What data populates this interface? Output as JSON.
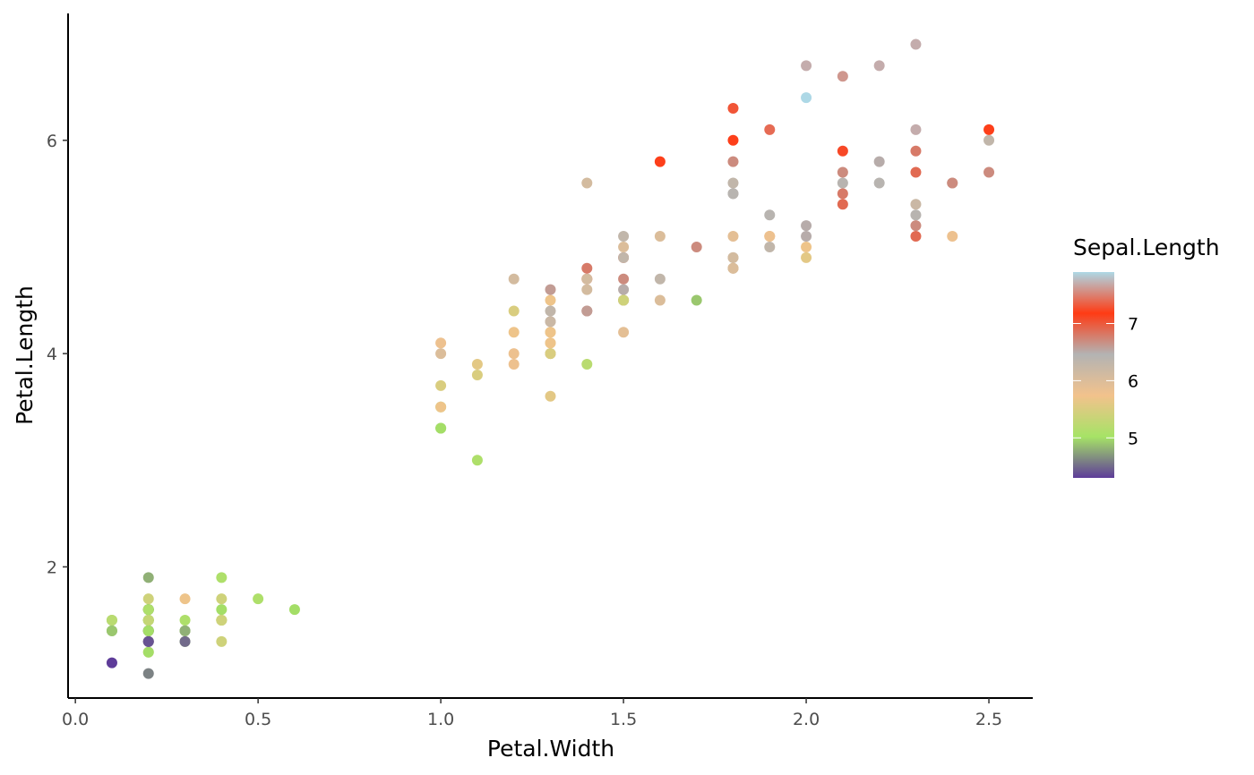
{
  "chart_data": {
    "type": "scatter",
    "xlabel": "Petal.Width",
    "ylabel": "Petal.Length",
    "xlim": [
      -0.02,
      2.62
    ],
    "ylim": [
      0.77,
      7.19
    ],
    "x_ticks": [
      0.0,
      0.5,
      1.0,
      1.5,
      2.0,
      2.5
    ],
    "x_tick_labels": [
      "0.0",
      "0.5",
      "1.0",
      "1.5",
      "2.0",
      "2.5"
    ],
    "y_ticks": [
      2,
      4,
      6
    ],
    "y_tick_labels": [
      "2",
      "4",
      "6"
    ],
    "grid": false,
    "legend": {
      "title": "Sepal.Length",
      "position": "right",
      "type": "colorbar",
      "range": [
        4.3,
        7.9
      ],
      "breaks": [
        5,
        6,
        7
      ],
      "break_labels": [
        "5",
        "6",
        "7"
      ],
      "colors": [
        "#5e3c99",
        "#a6e366",
        "#f2c28c",
        "#b3b3b3",
        "#ff3b14",
        "#add8e6"
      ]
    },
    "points": [
      {
        "x": 0.2,
        "y": 1.4,
        "c": 5.1
      },
      {
        "x": 0.2,
        "y": 1.4,
        "c": 4.9
      },
      {
        "x": 0.2,
        "y": 1.3,
        "c": 4.7
      },
      {
        "x": 0.2,
        "y": 1.5,
        "c": 4.6
      },
      {
        "x": 0.2,
        "y": 1.4,
        "c": 5.0
      },
      {
        "x": 0.4,
        "y": 1.7,
        "c": 5.4
      },
      {
        "x": 0.3,
        "y": 1.4,
        "c": 4.6
      },
      {
        "x": 0.2,
        "y": 1.5,
        "c": 5.0
      },
      {
        "x": 0.2,
        "y": 1.4,
        "c": 4.4
      },
      {
        "x": 0.1,
        "y": 1.5,
        "c": 4.9
      },
      {
        "x": 0.2,
        "y": 1.5,
        "c": 5.4
      },
      {
        "x": 0.2,
        "y": 1.6,
        "c": 4.8
      },
      {
        "x": 0.1,
        "y": 1.4,
        "c": 4.8
      },
      {
        "x": 0.1,
        "y": 1.1,
        "c": 4.3
      },
      {
        "x": 0.2,
        "y": 1.2,
        "c": 5.8
      },
      {
        "x": 0.4,
        "y": 1.5,
        "c": 5.7
      },
      {
        "x": 0.4,
        "y": 1.3,
        "c": 5.4
      },
      {
        "x": 0.3,
        "y": 1.4,
        "c": 5.1
      },
      {
        "x": 0.3,
        "y": 1.7,
        "c": 5.7
      },
      {
        "x": 0.3,
        "y": 1.5,
        "c": 5.1
      },
      {
        "x": 0.2,
        "y": 1.7,
        "c": 5.4
      },
      {
        "x": 0.4,
        "y": 1.5,
        "c": 5.1
      },
      {
        "x": 0.2,
        "y": 1.0,
        "c": 4.6
      },
      {
        "x": 0.5,
        "y": 1.7,
        "c": 5.1
      },
      {
        "x": 0.2,
        "y": 1.9,
        "c": 4.8
      },
      {
        "x": 0.2,
        "y": 1.6,
        "c": 5.0
      },
      {
        "x": 0.4,
        "y": 1.6,
        "c": 5.0
      },
      {
        "x": 0.2,
        "y": 1.5,
        "c": 5.2
      },
      {
        "x": 0.2,
        "y": 1.4,
        "c": 5.2
      },
      {
        "x": 0.2,
        "y": 1.6,
        "c": 4.7
      },
      {
        "x": 0.2,
        "y": 1.6,
        "c": 4.8
      },
      {
        "x": 0.4,
        "y": 1.5,
        "c": 5.4
      },
      {
        "x": 0.1,
        "y": 1.5,
        "c": 5.2
      },
      {
        "x": 0.2,
        "y": 1.4,
        "c": 5.5
      },
      {
        "x": 0.2,
        "y": 1.5,
        "c": 4.9
      },
      {
        "x": 0.2,
        "y": 1.2,
        "c": 5.0
      },
      {
        "x": 0.2,
        "y": 1.3,
        "c": 5.5
      },
      {
        "x": 0.1,
        "y": 1.4,
        "c": 4.9
      },
      {
        "x": 0.2,
        "y": 1.3,
        "c": 4.4
      },
      {
        "x": 0.2,
        "y": 1.5,
        "c": 5.1
      },
      {
        "x": 0.3,
        "y": 1.3,
        "c": 5.0
      },
      {
        "x": 0.3,
        "y": 1.3,
        "c": 4.5
      },
      {
        "x": 0.2,
        "y": 1.3,
        "c": 4.4
      },
      {
        "x": 0.6,
        "y": 1.6,
        "c": 5.0
      },
      {
        "x": 0.4,
        "y": 1.9,
        "c": 5.1
      },
      {
        "x": 0.3,
        "y": 1.4,
        "c": 4.8
      },
      {
        "x": 0.2,
        "y": 1.6,
        "c": 5.1
      },
      {
        "x": 0.2,
        "y": 1.4,
        "c": 4.6
      },
      {
        "x": 0.2,
        "y": 1.5,
        "c": 5.3
      },
      {
        "x": 0.2,
        "y": 1.4,
        "c": 5.0
      },
      {
        "x": 1.4,
        "y": 4.7,
        "c": 7.0
      },
      {
        "x": 1.5,
        "y": 4.5,
        "c": 6.4
      },
      {
        "x": 1.5,
        "y": 4.9,
        "c": 6.9
      },
      {
        "x": 1.3,
        "y": 4.0,
        "c": 5.5
      },
      {
        "x": 1.5,
        "y": 4.6,
        "c": 6.5
      },
      {
        "x": 1.3,
        "y": 4.5,
        "c": 5.7
      },
      {
        "x": 1.6,
        "y": 4.7,
        "c": 6.3
      },
      {
        "x": 1.0,
        "y": 3.3,
        "c": 4.9
      },
      {
        "x": 1.3,
        "y": 4.6,
        "c": 6.6
      },
      {
        "x": 1.4,
        "y": 3.9,
        "c": 5.2
      },
      {
        "x": 1.0,
        "y": 3.5,
        "c": 5.0
      },
      {
        "x": 1.5,
        "y": 4.2,
        "c": 5.9
      },
      {
        "x": 1.0,
        "y": 4.0,
        "c": 6.0
      },
      {
        "x": 1.4,
        "y": 4.7,
        "c": 6.1
      },
      {
        "x": 1.3,
        "y": 3.6,
        "c": 5.6
      },
      {
        "x": 1.4,
        "y": 4.4,
        "c": 6.7
      },
      {
        "x": 1.5,
        "y": 4.5,
        "c": 5.6
      },
      {
        "x": 1.0,
        "y": 4.1,
        "c": 5.8
      },
      {
        "x": 1.5,
        "y": 4.5,
        "c": 6.2
      },
      {
        "x": 1.1,
        "y": 3.9,
        "c": 5.6
      },
      {
        "x": 1.8,
        "y": 4.8,
        "c": 5.9
      },
      {
        "x": 1.3,
        "y": 4.0,
        "c": 6.1
      },
      {
        "x": 1.5,
        "y": 4.9,
        "c": 6.3
      },
      {
        "x": 1.2,
        "y": 4.7,
        "c": 6.1
      },
      {
        "x": 1.3,
        "y": 4.3,
        "c": 6.4
      },
      {
        "x": 1.4,
        "y": 4.4,
        "c": 6.6
      },
      {
        "x": 1.4,
        "y": 4.8,
        "c": 6.8
      },
      {
        "x": 1.7,
        "y": 5.0,
        "c": 6.7
      },
      {
        "x": 1.5,
        "y": 4.5,
        "c": 6.0
      },
      {
        "x": 1.0,
        "y": 3.5,
        "c": 5.7
      },
      {
        "x": 1.1,
        "y": 3.8,
        "c": 5.5
      },
      {
        "x": 1.0,
        "y": 3.7,
        "c": 5.5
      },
      {
        "x": 1.2,
        "y": 3.9,
        "c": 5.8
      },
      {
        "x": 1.6,
        "y": 5.1,
        "c": 6.0
      },
      {
        "x": 1.5,
        "y": 4.5,
        "c": 5.4
      },
      {
        "x": 1.6,
        "y": 4.5,
        "c": 6.0
      },
      {
        "x": 1.5,
        "y": 4.7,
        "c": 6.7
      },
      {
        "x": 1.3,
        "y": 4.4,
        "c": 6.3
      },
      {
        "x": 1.3,
        "y": 4.1,
        "c": 5.6
      },
      {
        "x": 1.3,
        "y": 4.0,
        "c": 5.5
      },
      {
        "x": 1.2,
        "y": 4.4,
        "c": 5.5
      },
      {
        "x": 1.4,
        "y": 4.6,
        "c": 6.1
      },
      {
        "x": 1.2,
        "y": 4.0,
        "c": 5.8
      },
      {
        "x": 1.0,
        "y": 3.3,
        "c": 5.0
      },
      {
        "x": 1.3,
        "y": 4.2,
        "c": 5.6
      },
      {
        "x": 1.2,
        "y": 4.2,
        "c": 5.7
      },
      {
        "x": 1.3,
        "y": 4.2,
        "c": 5.7
      },
      {
        "x": 1.3,
        "y": 4.3,
        "c": 6.2
      },
      {
        "x": 1.1,
        "y": 3.0,
        "c": 5.1
      },
      {
        "x": 1.3,
        "y": 4.1,
        "c": 5.7
      },
      {
        "x": 2.5,
        "y": 6.0,
        "c": 6.3
      },
      {
        "x": 1.9,
        "y": 5.1,
        "c": 5.8
      },
      {
        "x": 2.1,
        "y": 5.9,
        "c": 7.1
      },
      {
        "x": 1.8,
        "y": 5.6,
        "c": 6.3
      },
      {
        "x": 2.2,
        "y": 5.8,
        "c": 6.5
      },
      {
        "x": 2.1,
        "y": 6.6,
        "c": 7.6
      },
      {
        "x": 1.7,
        "y": 4.5,
        "c": 4.9
      },
      {
        "x": 1.8,
        "y": 6.3,
        "c": 7.3
      },
      {
        "x": 1.8,
        "y": 5.8,
        "c": 6.7
      },
      {
        "x": 2.5,
        "y": 6.1,
        "c": 7.2
      },
      {
        "x": 2.0,
        "y": 5.1,
        "c": 6.5
      },
      {
        "x": 1.9,
        "y": 5.3,
        "c": 6.4
      },
      {
        "x": 2.1,
        "y": 5.5,
        "c": 6.8
      },
      {
        "x": 2.0,
        "y": 5.0,
        "c": 5.7
      },
      {
        "x": 2.4,
        "y": 5.1,
        "c": 5.8
      },
      {
        "x": 2.3,
        "y": 5.3,
        "c": 6.4
      },
      {
        "x": 1.8,
        "y": 5.5,
        "c": 6.5
      },
      {
        "x": 2.2,
        "y": 6.7,
        "c": 7.7
      },
      {
        "x": 2.3,
        "y": 6.9,
        "c": 7.7
      },
      {
        "x": 1.5,
        "y": 5.0,
        "c": 6.0
      },
      {
        "x": 2.3,
        "y": 5.7,
        "c": 6.9
      },
      {
        "x": 2.0,
        "y": 4.9,
        "c": 5.6
      },
      {
        "x": 2.0,
        "y": 6.7,
        "c": 7.7
      },
      {
        "x": 1.8,
        "y": 4.9,
        "c": 6.3
      },
      {
        "x": 2.1,
        "y": 5.7,
        "c": 6.7
      },
      {
        "x": 1.8,
        "y": 6.0,
        "c": 7.2
      },
      {
        "x": 1.8,
        "y": 4.8,
        "c": 6.2
      },
      {
        "x": 1.8,
        "y": 4.9,
        "c": 6.1
      },
      {
        "x": 2.1,
        "y": 5.6,
        "c": 6.4
      },
      {
        "x": 1.6,
        "y": 5.8,
        "c": 7.2
      },
      {
        "x": 1.9,
        "y": 6.1,
        "c": 7.4
      },
      {
        "x": 2.0,
        "y": 6.4,
        "c": 7.9
      },
      {
        "x": 2.2,
        "y": 5.6,
        "c": 6.4
      },
      {
        "x": 1.5,
        "y": 5.1,
        "c": 6.3
      },
      {
        "x": 1.4,
        "y": 5.6,
        "c": 6.1
      },
      {
        "x": 2.3,
        "y": 6.1,
        "c": 7.7
      },
      {
        "x": 2.4,
        "y": 5.6,
        "c": 6.3
      },
      {
        "x": 1.8,
        "y": 5.5,
        "c": 6.4
      },
      {
        "x": 1.8,
        "y": 4.8,
        "c": 6.0
      },
      {
        "x": 2.1,
        "y": 5.4,
        "c": 6.9
      },
      {
        "x": 2.4,
        "y": 5.6,
        "c": 6.7
      },
      {
        "x": 2.3,
        "y": 5.1,
        "c": 6.9
      },
      {
        "x": 1.9,
        "y": 5.1,
        "c": 5.8
      },
      {
        "x": 2.3,
        "y": 5.9,
        "c": 6.8
      },
      {
        "x": 2.5,
        "y": 5.7,
        "c": 6.7
      },
      {
        "x": 2.3,
        "y": 5.2,
        "c": 6.7
      },
      {
        "x": 1.9,
        "y": 5.0,
        "c": 6.3
      },
      {
        "x": 2.0,
        "y": 5.2,
        "c": 6.5
      },
      {
        "x": 2.3,
        "y": 5.4,
        "c": 6.2
      },
      {
        "x": 1.8,
        "y": 5.1,
        "c": 5.9
      }
    ]
  }
}
